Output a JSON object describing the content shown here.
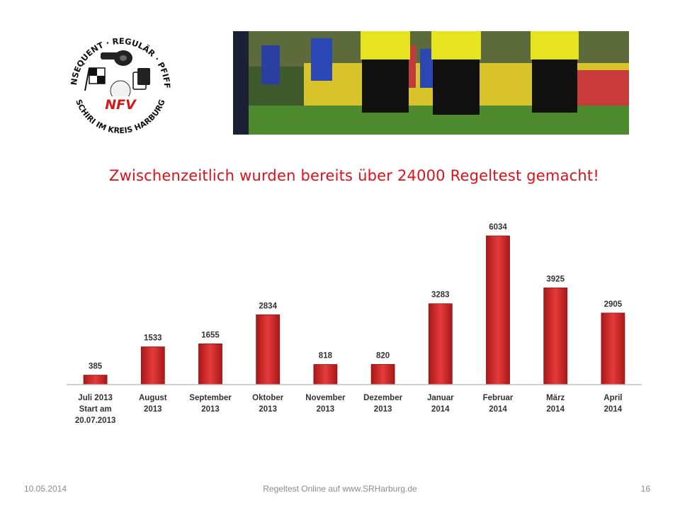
{
  "logo": {
    "top_text": "KONSEQUENT · REGULÄR · PFIFFIG",
    "bottom_text": "SCHIRI IM KREIS HARBURG",
    "badge": "NFV"
  },
  "photo": {
    "alt": "referees-on-football-pitch"
  },
  "headline": "Zwischenzeitlich wurden bereits über 24000 Regeltest gemacht!",
  "chart_data": {
    "type": "bar",
    "categories": [
      [
        "Juli 2013",
        "Start am",
        "20.07.2013"
      ],
      [
        "August",
        "2013"
      ],
      [
        "September",
        "2013"
      ],
      [
        "Oktober",
        "2013"
      ],
      [
        "November",
        "2013"
      ],
      [
        "Dezember",
        "2013"
      ],
      [
        "Januar",
        "2014"
      ],
      [
        "Februar",
        "2014"
      ],
      [
        "März",
        "2014"
      ],
      [
        "April",
        "2014"
      ]
    ],
    "values": [
      385,
      1533,
      1655,
      2834,
      818,
      820,
      3283,
      6034,
      3925,
      2905
    ],
    "data_labels": [
      "385",
      "1533",
      "1655",
      "2834",
      "818",
      "820",
      "3283",
      "6034",
      "3925",
      "2905"
    ],
    "title": "",
    "xlabel": "",
    "ylabel": "",
    "ylim": [
      0,
      6034
    ],
    "grid": false,
    "legend": "none",
    "bar_color": "#d12a2a"
  },
  "footer": {
    "date": "10.05.2014",
    "center": "Regeltest Online auf www.SRHarburg.de",
    "page": "16"
  }
}
